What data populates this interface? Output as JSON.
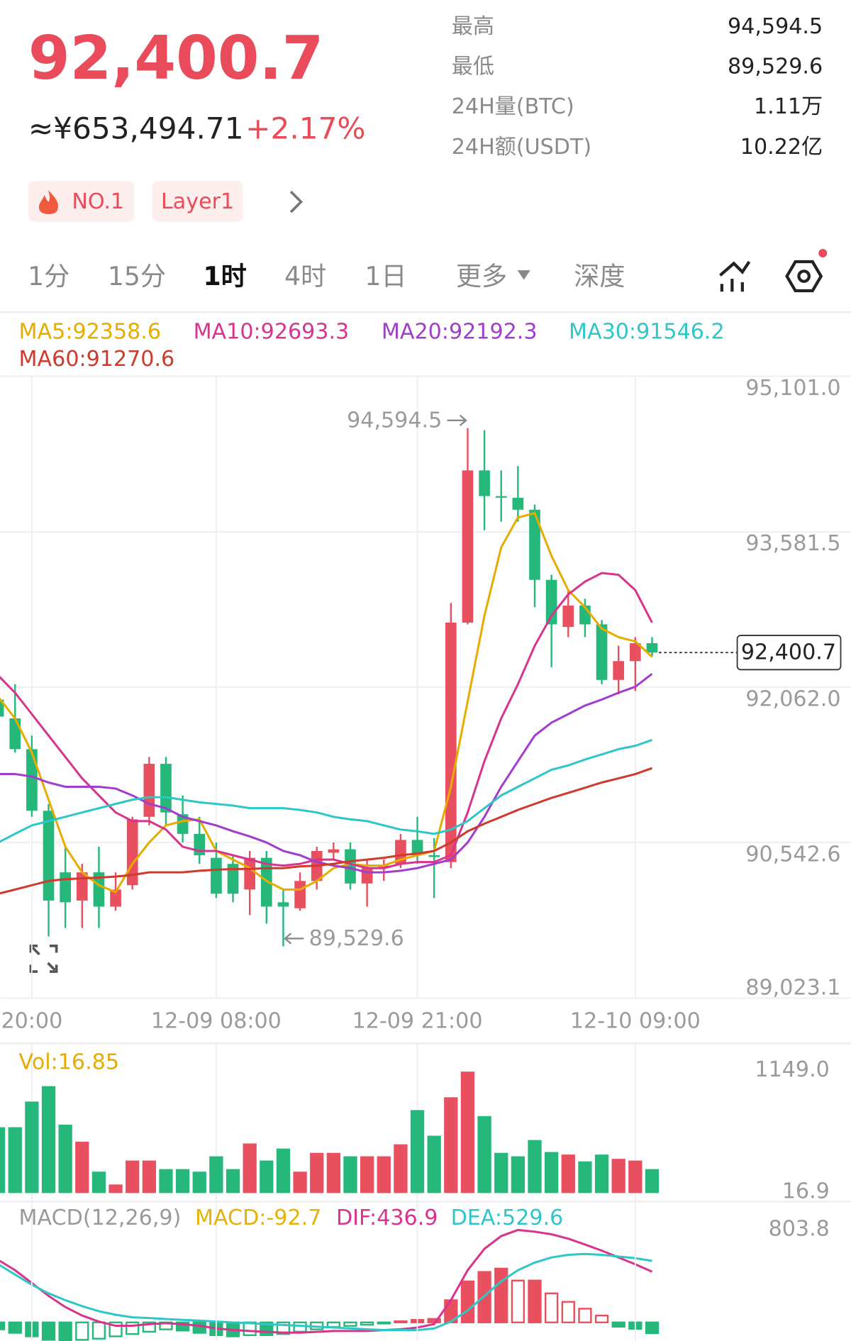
{
  "header": {
    "price": "92,400.7",
    "fiat": "≈¥653,494.71",
    "change": "+2.17%",
    "stats": [
      {
        "label": "最高",
        "value": "94,594.5"
      },
      {
        "label": "最低",
        "value": "89,529.6"
      },
      {
        "label": "24H量(BTC)",
        "value": "1.11万"
      },
      {
        "label": "24H额(USDT)",
        "value": "10.22亿"
      }
    ],
    "tags": [
      "NO.1",
      "Layer1"
    ]
  },
  "tabs": [
    "1分",
    "15分",
    "1时",
    "4时",
    "1日",
    "更多",
    "深度"
  ],
  "active_tab": 2,
  "chart_data": [
    {
      "type": "candlestick",
      "up_color": "#e9505f",
      "down_color": "#26b87a",
      "grid": true,
      "categories": [
        null,
        null,
        "20:00",
        null,
        null,
        null,
        null,
        null,
        null,
        null,
        null,
        null,
        null,
        "12-09 08:00",
        null,
        null,
        null,
        null,
        null,
        null,
        null,
        null,
        null,
        null,
        null,
        "12-09 21:00",
        null,
        null,
        null,
        null,
        null,
        null,
        null,
        null,
        null,
        null,
        null,
        null,
        "12-10 09:00",
        null
      ],
      "open": [
        91941,
        91757,
        91456,
        90854,
        90252,
        89976,
        90252,
        89917,
        90126,
        90795,
        91313,
        90820,
        90628,
        90394,
        90335,
        90084,
        90394,
        89959,
        89901,
        90168,
        90444,
        90477,
        90143,
        90293,
        90335,
        90569,
        90419,
        90352,
        92693,
        94181,
        93930,
        93914,
        93797,
        93111,
        92651,
        92860,
        92676,
        92133,
        92317,
        92492
      ],
      "high": [
        92091,
        92091,
        91589,
        90921,
        90502,
        90335,
        90502,
        90252,
        90795,
        91380,
        91380,
        91004,
        90795,
        90544,
        90419,
        90461,
        90461,
        90084,
        90252,
        90502,
        90544,
        90544,
        90377,
        90377,
        90628,
        90795,
        90586,
        92885,
        94594.5,
        94574,
        94181,
        94223,
        93847,
        93161,
        93011,
        92927,
        92718,
        92467,
        92551,
        92551
      ],
      "low": [
        91715,
        91422,
        90795,
        89625,
        89708,
        89708,
        89708,
        89876,
        90084,
        90711,
        90711,
        90544,
        90335,
        90001,
        89959,
        89834,
        89750,
        89529.6,
        89876,
        90084,
        90377,
        90084,
        89917,
        90168,
        90293,
        90335,
        90001,
        90293,
        92676,
        93596,
        93680,
        93680,
        92843,
        92258,
        92551,
        92551,
        92091,
        91991,
        92024,
        92359
      ],
      "close": [
        91774,
        91456,
        90854,
        89976,
        89959,
        90252,
        89917,
        90084,
        90770,
        91313,
        90837,
        90628,
        90419,
        90043,
        90043,
        90394,
        89917,
        89917,
        90168,
        90461,
        90477,
        90143,
        90293,
        90318,
        90569,
        90419,
        90402,
        92693,
        94181,
        93930,
        93914,
        93797,
        93111,
        92676,
        92860,
        92676,
        92133,
        92317,
        92492,
        92400.7
      ],
      "series": [
        {
          "name": "MA5:92358.6",
          "color": "#e6ac00",
          "values": [
            91966,
            91757,
            91422,
            90962,
            90502,
            90252,
            90126,
            90059,
            90335,
            90544,
            90711,
            90753,
            90770,
            90461,
            90377,
            90293,
            90168,
            90084,
            90084,
            90168,
            90293,
            90335,
            90318,
            90318,
            90377,
            90419,
            90461,
            91088,
            91924,
            92760,
            93429,
            93721,
            93763,
            93345,
            93011,
            92843,
            92634,
            92551,
            92509,
            92358.6
          ]
        },
        {
          "name": "MA10:92693.3",
          "color": "#d8348d",
          "values": [
            92175,
            92008,
            91799,
            91589,
            91380,
            91171,
            91004,
            90837,
            90753,
            90753,
            90670,
            90502,
            90461,
            90461,
            90419,
            90377,
            90335,
            90318,
            90335,
            90377,
            90377,
            90335,
            90293,
            90293,
            90335,
            90352,
            90352,
            90419,
            90837,
            91339,
            91757,
            92091,
            92467,
            92760,
            92969,
            93094,
            93178,
            93161,
            93011,
            92693.3
          ]
        },
        {
          "name": "MA20:92192.3",
          "color": "#a23ccc",
          "values": [
            91213,
            91213,
            91188,
            91130,
            91088,
            91088,
            91088,
            91071,
            91004,
            90921,
            90879,
            90795,
            90753,
            90711,
            90653,
            90603,
            90544,
            90461,
            90419,
            90352,
            90318,
            90293,
            90252,
            90252,
            90268,
            90293,
            90335,
            90377,
            90544,
            90795,
            91088,
            91339,
            91589,
            91715,
            91799,
            91882,
            91941,
            92008,
            92066,
            92192.3
          ]
        },
        {
          "name": "MA30:91546.2",
          "color": "#2fc6c8",
          "values": [
            90544,
            90628,
            90711,
            90753,
            90795,
            90837,
            90879,
            90921,
            90962,
            90987,
            90987,
            90962,
            90937,
            90921,
            90904,
            90879,
            90879,
            90879,
            90862,
            90837,
            90795,
            90770,
            90753,
            90711,
            90670,
            90653,
            90628,
            90670,
            90753,
            90879,
            91004,
            91088,
            91171,
            91255,
            91297,
            91355,
            91405,
            91456,
            91489,
            91546.2
          ]
        },
        {
          "name": "MA60:91270.6",
          "color": "#cf3a2c",
          "values": [
            90043,
            90084,
            90126,
            90168,
            90185,
            90193,
            90201,
            90210,
            90227,
            90252,
            90252,
            90252,
            90268,
            90277,
            90285,
            90285,
            90293,
            90293,
            90310,
            90318,
            90335,
            90360,
            90377,
            90394,
            90419,
            90436,
            90461,
            90544,
            90653,
            90728,
            90795,
            90862,
            90921,
            90979,
            91029,
            91079,
            91130,
            91171,
            91213,
            91270.6
          ]
        }
      ],
      "ylim": [
        89023.1,
        95101.0
      ],
      "yticks": [
        {
          "value": 95101.0,
          "label": "95,101.0"
        },
        {
          "value": 93581.5,
          "label": "93,581.5"
        },
        {
          "value": 92062.0,
          "label": "92,062.0"
        },
        {
          "value": 90542.6,
          "label": "90,542.6"
        },
        {
          "value": 89023.1,
          "label": "89,023.1"
        }
      ],
      "current_price": {
        "value": 92400.7,
        "label": "92,400.7"
      },
      "annotations": [
        {
          "value": 94594.5,
          "label": "94,594.5"
        },
        {
          "value": 89529.6,
          "label": "89,529.6"
        }
      ]
    },
    {
      "type": "bar",
      "title": "Vol:16.85",
      "up_color": "#e9505f",
      "down_color": "#26b87a",
      "values": [
        630.8,
        630.8,
        870.0,
        1013.5,
        654.7,
        495.3,
        216.2,
        96.6,
        319.9,
        319.9,
        240.1,
        240.1,
        216.2,
        359.7,
        240.1,
        479.3,
        319.9,
        431.5,
        216.2,
        391.6,
        391.6,
        359.7,
        359.7,
        359.7,
        471.4,
        790.3,
        551.1,
        909.9,
        1149.0,
        734.5,
        391.6,
        359.7,
        511.2,
        399.6,
        375.7,
        311.9,
        375.7,
        335.8,
        319.9,
        240.1
      ],
      "ylim": [
        16.9,
        1149.0
      ],
      "yticks": [
        {
          "value": 1149.0,
          "label": "1149.0"
        },
        {
          "value": 16.9,
          "label": "16.9"
        }
      ]
    },
    {
      "type": "macd",
      "title": "MACD(12,26,9)",
      "up_color": "#e9505f",
      "down_color": "#26b87a",
      "series": [
        {
          "name": "MACD:-92.7",
          "color": "#e6b20a",
          "values": [
            -60,
            -90,
            -120,
            -150,
            -160,
            -150,
            -140,
            -120,
            -100,
            -80,
            -60,
            -70,
            -90,
            -110,
            -120,
            -110,
            -110,
            -100,
            -80,
            -60,
            -40,
            -30,
            -20,
            -10,
            10,
            22,
            30,
            191,
            353,
            434,
            463,
            360,
            360,
            250,
            177,
            118,
            59,
            -37,
            -55,
            -92.7
          ]
        },
        {
          "name": "DIF:436.9",
          "color": "#d8348d",
          "values": [
            537,
            449,
            339,
            228,
            132,
            59,
            7,
            -29,
            -29,
            -15,
            -7,
            -15,
            -29,
            -52,
            -66,
            -74,
            -81,
            -88,
            -88,
            -81,
            -74,
            -74,
            -74,
            -66,
            -59,
            -44,
            -15,
            191,
            449,
            633,
            743,
            795,
            780,
            758,
            721,
            670,
            618,
            559,
            500,
            436.9
          ]
        },
        {
          "name": "DEA:529.6",
          "color": "#2fc6c8",
          "values": [
            500,
            412,
            324,
            250,
            191,
            140,
            96,
            66,
            44,
            37,
            29,
            22,
            15,
            7,
            0,
            -7,
            -15,
            -22,
            -29,
            -37,
            -44,
            -52,
            -59,
            -66,
            -66,
            -66,
            -52,
            7,
            103,
            228,
            353,
            449,
            515,
            559,
            581,
            589,
            581,
            567,
            552,
            529.6
          ]
        }
      ],
      "ylim": [
        -160,
        803.8
      ],
      "yticks": [
        {
          "value": 803.8,
          "label": "803.8"
        }
      ]
    }
  ]
}
